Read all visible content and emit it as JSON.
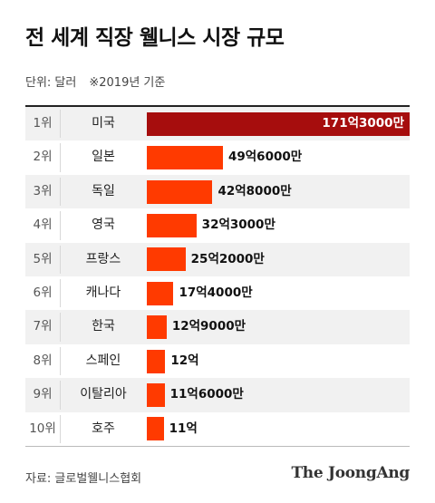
{
  "header": {
    "title": "전 세계 직장 웰니스 시장 규모",
    "unit_label": "단위: 달러",
    "note": "※2019년 기준"
  },
  "footer": {
    "source": "자료: 글로벌웰니스협회",
    "brand": "The JoongAng"
  },
  "colors": {
    "top_bar": "#a60d0d",
    "bar": "#ff3a00",
    "row_shade": "#f1f1f1"
  },
  "chart_data": {
    "type": "bar",
    "orientation": "horizontal",
    "title": "전 세계 직장 웰니스 시장 규모",
    "unit": "달러",
    "ranks": [
      "1위",
      "2위",
      "3위",
      "4위",
      "5위",
      "6위",
      "7위",
      "8위",
      "9위",
      "10위"
    ],
    "categories": [
      "미국",
      "일본",
      "독일",
      "영국",
      "프랑스",
      "캐나다",
      "한국",
      "스페인",
      "이탈리아",
      "호주"
    ],
    "values": [
      17130000000,
      4960000000,
      4280000000,
      3230000000,
      2520000000,
      1740000000,
      1290000000,
      1200000000,
      1160000000,
      1100000000
    ],
    "value_labels": [
      "171억3000만",
      "49억6000만",
      "42억8000만",
      "32억3000만",
      "25억2000만",
      "17억4000만",
      "12억9000만",
      "12억",
      "11억6000만",
      "11억"
    ]
  }
}
